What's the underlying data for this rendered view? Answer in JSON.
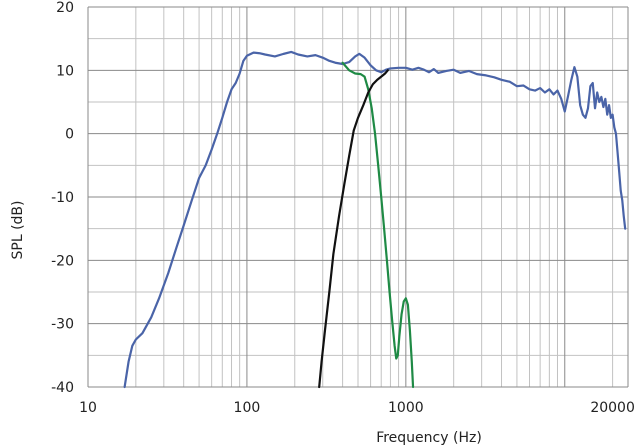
{
  "chart_data": {
    "type": "line",
    "title": "",
    "xlabel": "Frequency (Hz)",
    "ylabel": "SPL (dB)",
    "xscale": "log",
    "xlim": [
      10,
      25000
    ],
    "ylim": [
      -40,
      20
    ],
    "grid": true,
    "legend": "none",
    "xticks": [
      {
        "value": 10,
        "label": "10"
      },
      {
        "value": 100,
        "label": "100"
      },
      {
        "value": 1000,
        "label": "1000"
      },
      {
        "value": 20000,
        "label": "20000"
      }
    ],
    "yticks": [
      {
        "value": 20,
        "label": "20"
      },
      {
        "value": 10,
        "label": "10"
      },
      {
        "value": 0,
        "label": "0"
      },
      {
        "value": -10,
        "label": "-10"
      },
      {
        "value": -20,
        "label": "-20"
      },
      {
        "value": -30,
        "label": "-30"
      },
      {
        "value": -40,
        "label": "-40"
      }
    ],
    "series": [
      {
        "color": "#4a64a8",
        "points": [
          [
            17,
            -40
          ],
          [
            18,
            -36
          ],
          [
            19,
            -33.5
          ],
          [
            20,
            -32.5
          ],
          [
            22,
            -31.5
          ],
          [
            25,
            -29
          ],
          [
            28,
            -26
          ],
          [
            32,
            -22
          ],
          [
            36,
            -18
          ],
          [
            40,
            -14.5
          ],
          [
            45,
            -10.5
          ],
          [
            50,
            -7
          ],
          [
            55,
            -5
          ],
          [
            60,
            -2.5
          ],
          [
            65,
            0
          ],
          [
            70,
            2.5
          ],
          [
            75,
            5
          ],
          [
            80,
            7
          ],
          [
            85,
            8
          ],
          [
            90,
            9.5
          ],
          [
            95,
            11.5
          ],
          [
            100,
            12.3
          ],
          [
            110,
            12.8
          ],
          [
            120,
            12.7
          ],
          [
            130,
            12.5
          ],
          [
            150,
            12.2
          ],
          [
            170,
            12.6
          ],
          [
            190,
            12.9
          ],
          [
            210,
            12.5
          ],
          [
            240,
            12.2
          ],
          [
            270,
            12.4
          ],
          [
            300,
            12
          ],
          [
            330,
            11.5
          ],
          [
            360,
            11.2
          ],
          [
            400,
            11
          ],
          [
            440,
            11.3
          ],
          [
            480,
            12.2
          ],
          [
            510,
            12.6
          ],
          [
            550,
            12
          ],
          [
            600,
            10.8
          ],
          [
            650,
            10
          ],
          [
            700,
            9.7
          ],
          [
            750,
            10.1
          ],
          [
            800,
            10.3
          ],
          [
            900,
            10.4
          ],
          [
            1000,
            10.4
          ],
          [
            1100,
            10.1
          ],
          [
            1200,
            10.4
          ],
          [
            1300,
            10.1
          ],
          [
            1400,
            9.7
          ],
          [
            1500,
            10.2
          ],
          [
            1600,
            9.6
          ],
          [
            1800,
            9.9
          ],
          [
            2000,
            10.1
          ],
          [
            2200,
            9.6
          ],
          [
            2500,
            9.9
          ],
          [
            2800,
            9.4
          ],
          [
            3200,
            9.2
          ],
          [
            3600,
            8.9
          ],
          [
            4000,
            8.5
          ],
          [
            4500,
            8.2
          ],
          [
            5000,
            7.5
          ],
          [
            5500,
            7.6
          ],
          [
            6000,
            7
          ],
          [
            6500,
            6.8
          ],
          [
            7000,
            7.2
          ],
          [
            7500,
            6.5
          ],
          [
            8000,
            7
          ],
          [
            8500,
            6.2
          ],
          [
            9000,
            6.8
          ],
          [
            9500,
            5.5
          ],
          [
            10000,
            3.5
          ],
          [
            10500,
            6
          ],
          [
            11000,
            8.5
          ],
          [
            11500,
            10.5
          ],
          [
            12000,
            9
          ],
          [
            12500,
            4.5
          ],
          [
            13000,
            3
          ],
          [
            13500,
            2.5
          ],
          [
            14000,
            4
          ],
          [
            14500,
            7.5
          ],
          [
            15000,
            8
          ],
          [
            15500,
            4
          ],
          [
            16000,
            6.5
          ],
          [
            16500,
            5
          ],
          [
            17000,
            5.8
          ],
          [
            17500,
            4.2
          ],
          [
            18000,
            5.5
          ],
          [
            18500,
            3
          ],
          [
            19000,
            4.5
          ],
          [
            19500,
            2.5
          ],
          [
            20000,
            3
          ],
          [
            20500,
            1
          ],
          [
            21000,
            0
          ],
          [
            21500,
            -3
          ],
          [
            22000,
            -6
          ],
          [
            22500,
            -9
          ],
          [
            23000,
            -10.5
          ],
          [
            23500,
            -13
          ],
          [
            24000,
            -15
          ]
        ]
      },
      {
        "color": "#1f8a45",
        "points": [
          [
            400,
            11.2
          ],
          [
            440,
            10
          ],
          [
            480,
            9.5
          ],
          [
            520,
            9.4
          ],
          [
            550,
            9
          ],
          [
            580,
            7
          ],
          [
            610,
            4
          ],
          [
            640,
            0
          ],
          [
            670,
            -5
          ],
          [
            700,
            -10
          ],
          [
            730,
            -15
          ],
          [
            760,
            -20
          ],
          [
            790,
            -25
          ],
          [
            820,
            -29.5
          ],
          [
            850,
            -33.5
          ],
          [
            870,
            -35.5
          ],
          [
            890,
            -35
          ],
          [
            910,
            -32
          ],
          [
            940,
            -28.5
          ],
          [
            970,
            -26.5
          ],
          [
            1000,
            -26
          ],
          [
            1030,
            -27
          ],
          [
            1060,
            -31
          ],
          [
            1090,
            -36
          ],
          [
            1110,
            -40
          ]
        ]
      },
      {
        "color": "#111111",
        "points": [
          [
            285,
            -40
          ],
          [
            295,
            -36
          ],
          [
            310,
            -31
          ],
          [
            330,
            -25
          ],
          [
            350,
            -19
          ],
          [
            380,
            -13
          ],
          [
            410,
            -8
          ],
          [
            440,
            -3.5
          ],
          [
            470,
            0.5
          ],
          [
            500,
            2.5
          ],
          [
            540,
            4.5
          ],
          [
            580,
            6.5
          ],
          [
            620,
            7.8
          ],
          [
            660,
            8.5
          ],
          [
            700,
            9
          ],
          [
            740,
            9.5
          ],
          [
            770,
            10
          ]
        ]
      }
    ]
  }
}
